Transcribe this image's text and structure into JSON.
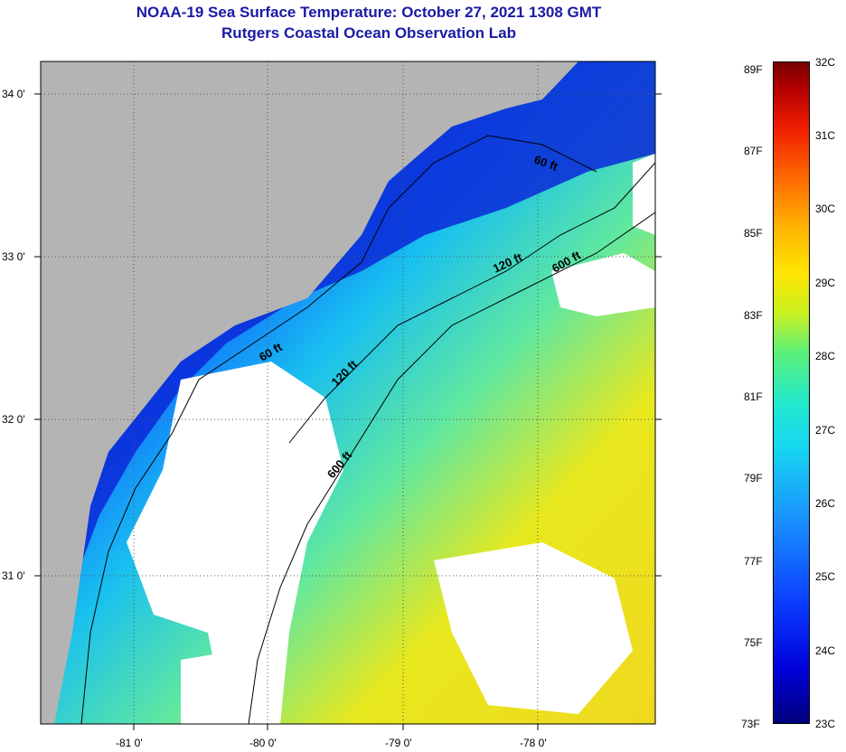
{
  "title": {
    "line1": "NOAA-19 Sea Surface Temperature:  October 27, 2021 1308 GMT",
    "line2": "Rutgers Coastal Ocean Observation Lab"
  },
  "map": {
    "lat_ticks": [
      "34 0'",
      "33 0'",
      "32 0'",
      "31 0'"
    ],
    "lon_ticks": [
      "-81 0'",
      "-80 0'",
      "-79 0'",
      "-78 0'"
    ],
    "isobaths": {
      "label_60_a": "60 ft",
      "label_60_b": "60 ft",
      "label_120_a": "120 ft",
      "label_120_b": "120 ft",
      "label_600_a": "600 ft",
      "label_600_b": "600 ft"
    },
    "colors": {
      "land": "#b4b4b4",
      "cloud": "#ffffff",
      "cold": "#0000c8",
      "warm": "#f0e61e"
    }
  },
  "colorbar": {
    "fahrenheit": [
      "89F",
      "87F",
      "85F",
      "83F",
      "81F",
      "79F",
      "77F",
      "75F",
      "73F"
    ],
    "celsius": [
      "32C",
      "31C",
      "30C",
      "29C",
      "28C",
      "27C",
      "26C",
      "25C",
      "24C",
      "23C"
    ]
  }
}
